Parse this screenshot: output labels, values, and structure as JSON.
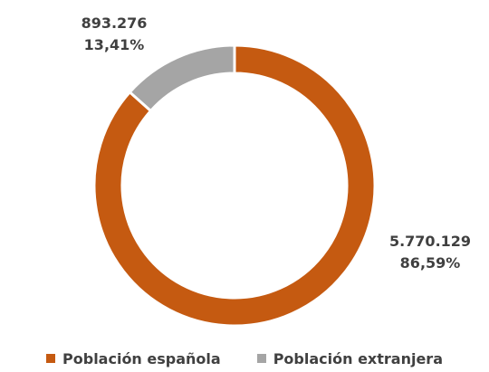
{
  "chart_data": {
    "type": "pie",
    "variant": "donut",
    "series": [
      {
        "name": "Población española",
        "value": 5770129,
        "value_label": "5.770.129",
        "percent": 86.59,
        "percent_label": "86,59%",
        "color": "#C55A11"
      },
      {
        "name": "Población extranjera",
        "value": 893276,
        "value_label": "893.276",
        "percent": 13.41,
        "percent_label": "13,41%",
        "color": "#A5A5A5"
      }
    ],
    "legend_position": "bottom"
  }
}
